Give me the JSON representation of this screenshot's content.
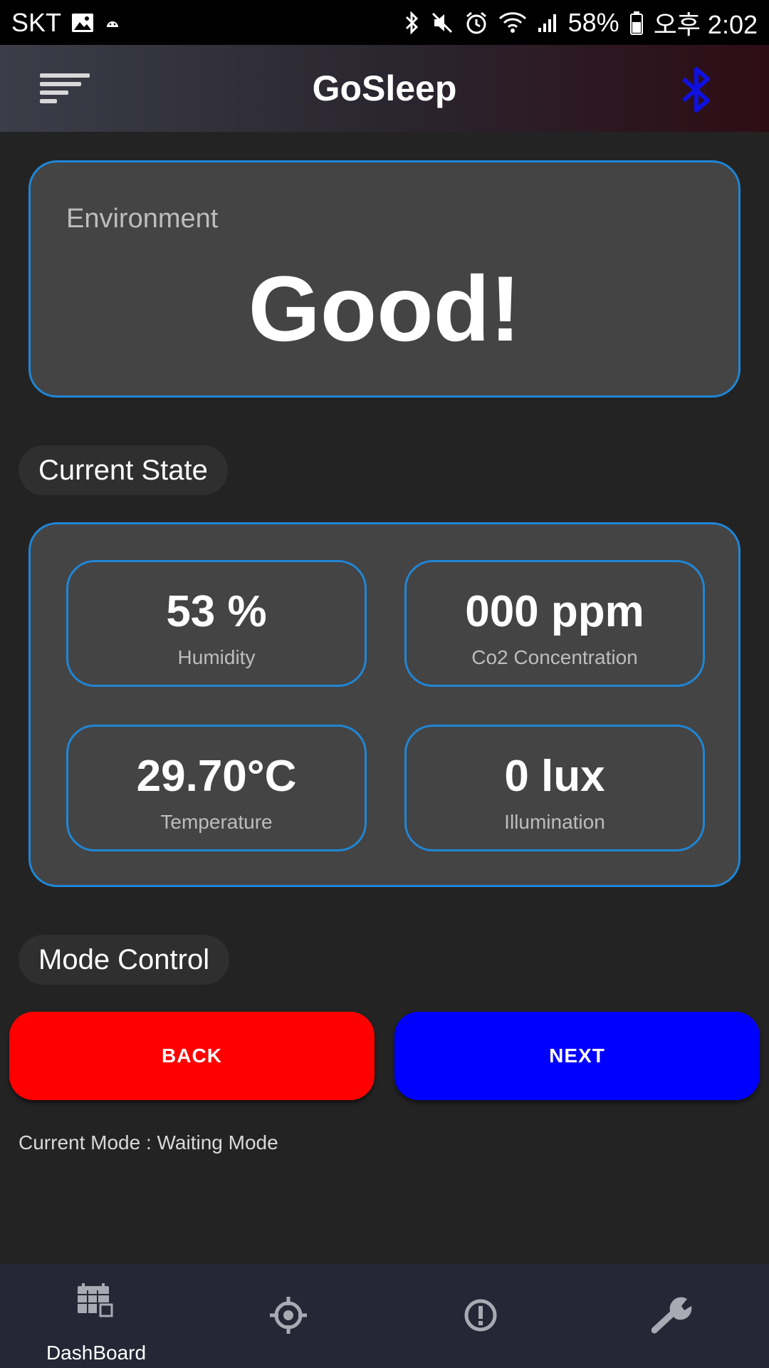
{
  "status_bar": {
    "carrier": "SKT",
    "battery": "58%",
    "time": "오후 2:02"
  },
  "app_bar": {
    "title": "GoSleep"
  },
  "environment": {
    "label": "Environment",
    "status": "Good!"
  },
  "current_state": {
    "title": "Current State",
    "metrics": [
      {
        "value": "53 %",
        "label": "Humidity"
      },
      {
        "value": "000 ppm",
        "label": "Co2 Concentration"
      },
      {
        "value": "29.70°C",
        "label": "Temperature"
      },
      {
        "value": "0 lux",
        "label": "Illumination"
      }
    ]
  },
  "mode_control": {
    "title": "Mode Control",
    "back_label": "BACK",
    "next_label": "NEXT",
    "current_mode": "Current Mode : Waiting Mode"
  },
  "bottom_nav": {
    "items": [
      {
        "label": "DashBoard",
        "icon": "dashboard-icon"
      },
      {
        "label": "",
        "icon": "crosshair-icon"
      },
      {
        "label": "",
        "icon": "info-icon"
      },
      {
        "label": "",
        "icon": "wrench-icon"
      }
    ]
  },
  "colors": {
    "accent_border": "#1f86d6",
    "back_button": "#ff0000",
    "next_button": "#0000ff",
    "bluetooth": "#1010e0"
  }
}
